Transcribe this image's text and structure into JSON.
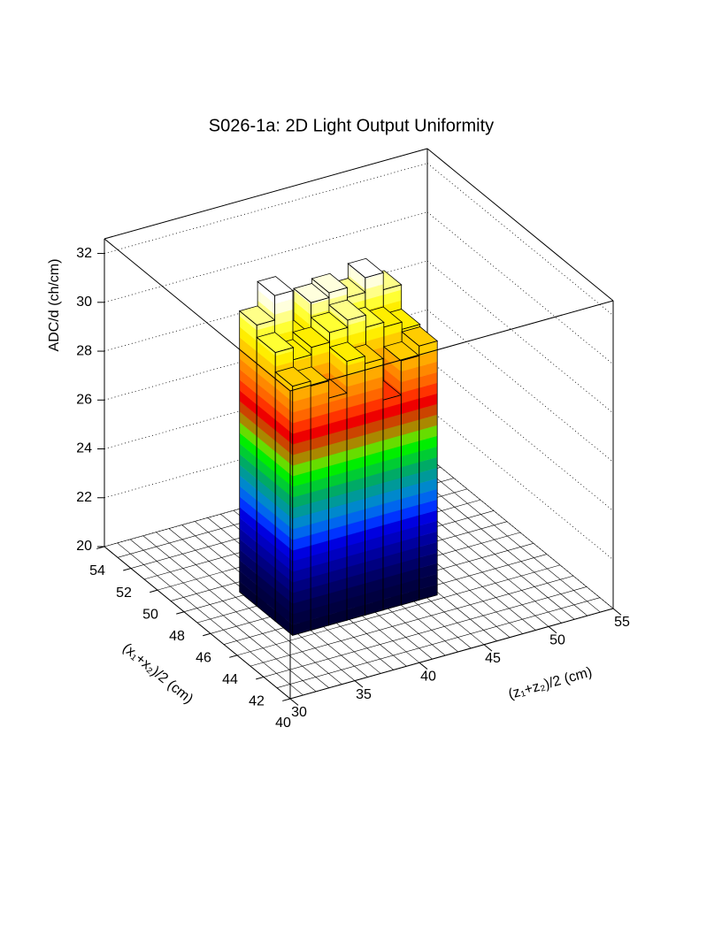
{
  "chart_data": {
    "type": "lego",
    "title": "S026-1a: 2D Light Output Uniformity",
    "x_label": "(z₁+z₂)/2 (cm)",
    "y_label": "(x₁+x₂)/2 (cm)",
    "z_label": "ADC/d (ch/cm)",
    "xlim": [
      30,
      55
    ],
    "xticks": [
      30,
      35,
      40,
      45,
      50,
      55
    ],
    "ylim": [
      40,
      54
    ],
    "yticks": [
      40,
      42,
      44,
      46,
      48,
      50,
      52,
      54
    ],
    "zlim": [
      20,
      32.6
    ],
    "zticks": [
      20,
      22,
      24,
      26,
      28,
      30,
      32
    ],
    "x_bins": [
      34.6,
      36,
      37.4,
      38.8,
      40.2,
      41.6,
      43,
      44.4,
      45.8
    ],
    "y_bins": [
      44.3,
      45.6,
      47,
      48.3
    ],
    "values": [
      [
        30.2,
        30.0,
        29.3,
        30.6,
        30.3,
        28.6,
        30.0,
        30.4
      ],
      [
        31.0,
        30.5,
        30.8,
        31.2,
        31.5,
        31.0,
        30.8,
        30.5
      ],
      [
        31.5,
        32.5,
        30.5,
        31.8,
        32.0,
        31.6,
        32.2,
        31.5
      ]
    ],
    "palette": [
      "#000033",
      "#000040",
      "#00004d",
      "#000066",
      "#000080",
      "#00009e",
      "#0000c0",
      "#0000e0",
      "#0033ff",
      "#0066ee",
      "#0088cc",
      "#009999",
      "#00aa66",
      "#00cc33",
      "#00ee00",
      "#66dd00",
      "#aa8800",
      "#cc4400",
      "#ee0000",
      "#ff3300",
      "#ff6600",
      "#ff8800",
      "#ffaa00",
      "#ffcc00",
      "#ffee00",
      "#ffff33",
      "#ffff88",
      "#ffffdd",
      "#ffffff"
    ]
  }
}
